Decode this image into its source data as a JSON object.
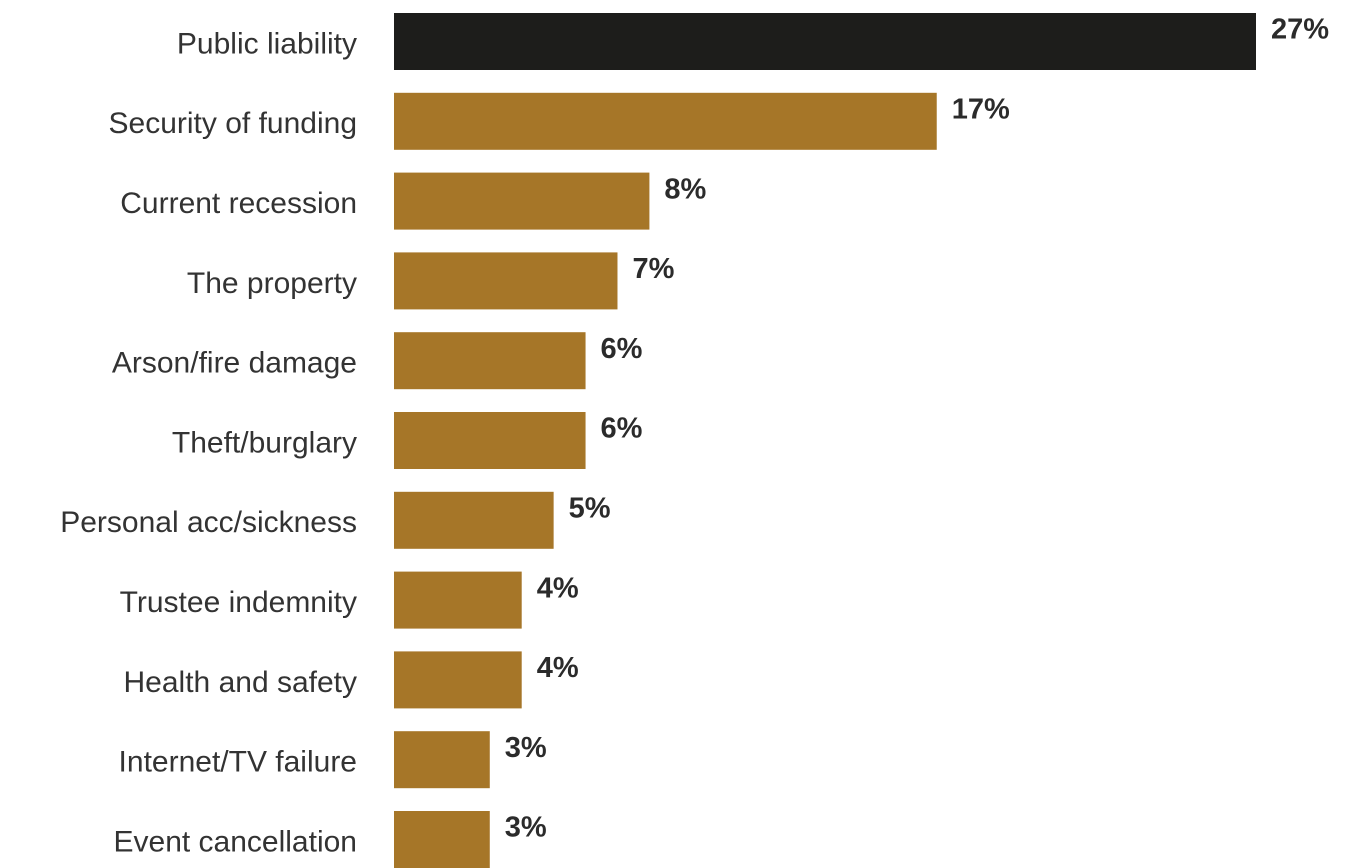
{
  "chart_data": {
    "type": "bar",
    "orientation": "horizontal",
    "categories": [
      "Public liability",
      "Security of funding",
      "Current recession",
      "The property",
      "Arson/fire damage",
      "Theft/burglary",
      "Personal acc/sickness",
      "Trustee indemnity",
      "Health and safety",
      "Internet/TV failure",
      "Event cancellation"
    ],
    "values": [
      27,
      17,
      8,
      7,
      6,
      6,
      5,
      4,
      4,
      3,
      3
    ],
    "value_labels": [
      "27%",
      "17%",
      "8%",
      "7%",
      "6%",
      "6%",
      "5%",
      "4%",
      "4%",
      "3%",
      "3%"
    ],
    "xlim": [
      0,
      27
    ],
    "grid": false,
    "legend": "none",
    "colors": {
      "highlight": "#1d1d1b",
      "bar": "#a67628",
      "label": "#333333",
      "value": "#2b2b2b"
    },
    "highlight_index": 0
  }
}
